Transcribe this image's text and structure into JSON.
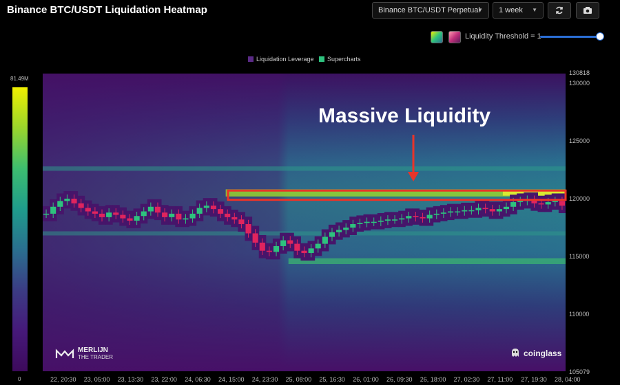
{
  "header": {
    "title": "Binance BTC/USDT Liquidation Heatmap",
    "pair_select": "Binance BTC/USDT Perpetual",
    "range_select": "1 week",
    "refresh_icon": "refresh-icon",
    "camera_icon": "camera-icon"
  },
  "controls": {
    "threshold_label": "Liquidity Threshold = 1",
    "threshold_value": 1
  },
  "colors": {
    "background": "#000000",
    "heat_low": "#471067",
    "heat_mid": "#1f9c8c",
    "heat_high": "#f0f000",
    "candle_up": "#2ec27e",
    "candle_down": "#e0245e",
    "highlight": "#e8342a",
    "slider": "#2b6fd6"
  },
  "legend": [
    {
      "label": "Liquidation Leverage",
      "color": "#5a2a86"
    },
    {
      "label": "Supercharts",
      "color": "#2ec27e"
    }
  ],
  "colorbar": {
    "max_label": "81.49M",
    "min_label": "0"
  },
  "annotation": {
    "text": "Massive Liquidity"
  },
  "watermarks": {
    "merlijn_line1": "MERLIJN",
    "merlijn_line2": "THE TRADER",
    "coinglass": "coinglass"
  },
  "chart_data": {
    "type": "heatmap",
    "title": "Binance BTC/USDT Liquidation Heatmap",
    "ylim": [
      105079,
      130818
    ],
    "y_ticks": [
      "130818",
      "130000",
      "125000",
      "120000",
      "115000",
      "110000",
      "105079"
    ],
    "y_tick_values": [
      130818,
      130000,
      125000,
      120000,
      115000,
      110000,
      105079
    ],
    "x_ticks": [
      "22, 20:30",
      "23, 05:00",
      "23, 13:30",
      "23, 22:00",
      "24, 06:30",
      "24, 15:00",
      "24, 23:30",
      "25, 08:00",
      "25, 16:30",
      "26, 01:00",
      "26, 09:30",
      "26, 18:00",
      "27, 02:30",
      "27, 11:00",
      "27, 19:30",
      "28, 04:00"
    ],
    "price_series": [
      118700,
      119300,
      119800,
      120000,
      119600,
      119200,
      118900,
      118700,
      118400,
      118800,
      118600,
      118300,
      118100,
      118500,
      118900,
      119300,
      118800,
      118400,
      118700,
      118200,
      118300,
      118700,
      119200,
      119400,
      119100,
      118700,
      118400,
      118200,
      117800,
      117000,
      116200,
      115500,
      115400,
      115900,
      116400,
      116100,
      115500,
      115300,
      115700,
      116100,
      116700,
      117100,
      117300,
      117500,
      117800,
      117900,
      118000,
      118000,
      118100,
      118200,
      118200,
      118300,
      118500,
      118400,
      118300,
      118600,
      118700,
      118800,
      118900,
      118900,
      119000,
      119000,
      119200,
      119100,
      118900,
      119100,
      119300,
      119700,
      119800,
      119900,
      119600,
      119500,
      119700,
      119800,
      119400
    ],
    "liquidity_bands": [
      {
        "price": 120500,
        "intensity": 0.8,
        "start": 0.35
      },
      {
        "price": 114600,
        "intensity": 0.55,
        "start": 0.47
      },
      {
        "price": 122600,
        "intensity": 0.3,
        "start": 0.0
      },
      {
        "price": 117000,
        "intensity": 0.25,
        "start": 0.0
      }
    ],
    "annotation_box": {
      "price_low": 119900,
      "price_high": 120700,
      "label": "Massive Liquidity"
    }
  }
}
